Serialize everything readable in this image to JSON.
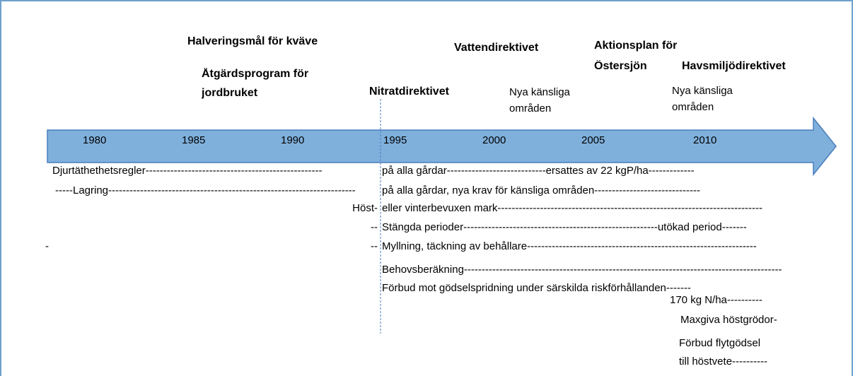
{
  "years": [
    "1980",
    "1985",
    "1990",
    "1995",
    "2000",
    "2005",
    "2010"
  ],
  "headings": [
    "Halveringsmål för kväve",
    "Åtgärdsprogram för",
    "jordbruket",
    "Vattendirektivet",
    "Nitratdirektivet",
    "Aktionsplan för",
    "Östersjön",
    "Havsmiljödirektivet"
  ],
  "notes": [
    "Nya känsliga",
    "områden",
    "Nya känsliga",
    "områden"
  ],
  "rows": [
    [
      "Djurtäthethetsregler--------------------------------------------------",
      "på alla gårdar----------------------------ersattes av 22 kgP/ha-------------"
    ],
    [
      "-----Lagring----------------------------------------------------------------------",
      "på alla gårdar, nya krav för känsliga områden------------------------------"
    ],
    [
      "Höst-",
      "eller vinterbevuxen mark---------------------------------------------------------------------------"
    ],
    [
      "--",
      "Stängda perioder-------------------------------------------------------utökad period-------"
    ],
    [
      "-",
      "--",
      "Myllning, täckning av behållare-----------------------------------------------------------------"
    ],
    [
      "Behovsberäkning------------------------------------------------------------------------------------------"
    ],
    [
      "Förbud mot gödselspridning under särskilda riskförhållanden-------"
    ],
    [
      "170 kg N/ha----------"
    ],
    [
      "Maxgiva höstgrödor-"
    ],
    [
      "Förbud flytgödsel"
    ],
    [
      "till höstvete----------"
    ]
  ]
}
